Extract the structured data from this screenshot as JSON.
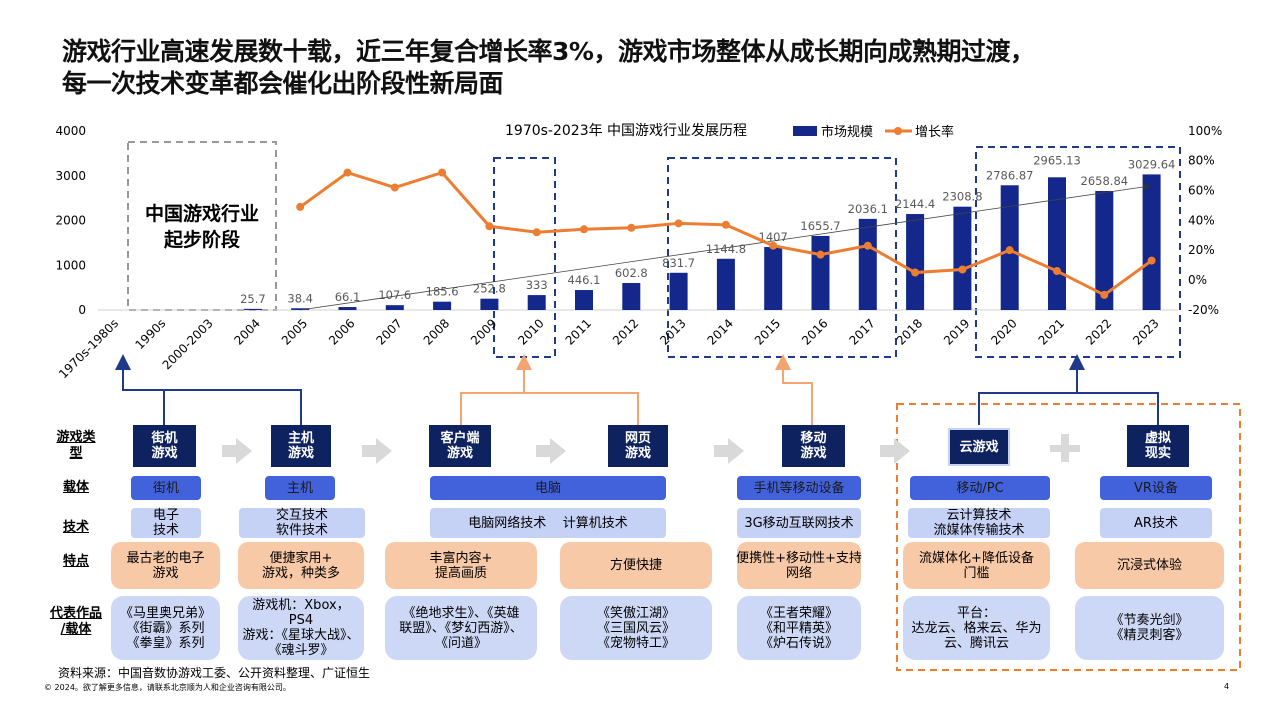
{
  "title": {
    "line1": "游戏行业高速发展数十载，近三年复合增长率3%，游戏市场整体从成长期向成熟期过渡，",
    "line2": "每一次技术变革都会催化出阶段性新局面"
  },
  "chart_data": {
    "type": "bar+line",
    "title": "1970s-2023年 中国游戏行业发展历程",
    "categories": [
      "1970s-1980s",
      "1990s",
      "2000-2003",
      "2004",
      "2005",
      "2006",
      "2007",
      "2008",
      "2009",
      "2010",
      "2011",
      "2012",
      "2013",
      "2014",
      "2015",
      "2016",
      "2017",
      "2018",
      "2019",
      "2020",
      "2021",
      "2022",
      "2023"
    ],
    "series": [
      {
        "name": "市场规模",
        "type": "bar",
        "axis": "left",
        "color": "#13288a",
        "values": [
          null,
          null,
          null,
          25.7,
          38.4,
          66.1,
          107.6,
          185.6,
          252.8,
          333,
          446.1,
          602.8,
          831.7,
          1144.8,
          1407,
          1655.7,
          2036.1,
          2144.4,
          2308.8,
          2786.87,
          2965.13,
          2658.84,
          3029.64
        ]
      },
      {
        "name": "增长率",
        "type": "line",
        "axis": "right",
        "color": "#ed7d31",
        "values": [
          null,
          null,
          null,
          null,
          49,
          72,
          62,
          72,
          36,
          32,
          34,
          35,
          38,
          37,
          23,
          17,
          23,
          5,
          7,
          20,
          6,
          -10,
          13
        ]
      }
    ],
    "y_left": {
      "range": [
        0,
        4000
      ],
      "ticks": [
        "0",
        "1000",
        "2000",
        "3000",
        "4000"
      ]
    },
    "y_right": {
      "range": [
        -20,
        100
      ],
      "unit": "%",
      "ticks": [
        "-20%",
        "0%",
        "20%",
        "40%",
        "60%",
        "80%",
        "100%"
      ]
    },
    "legend_placement": "top",
    "grid": false,
    "annotation": "中国游戏行业\n起步阶段"
  },
  "diagram": {
    "row_labels": [
      "游戏类\n型",
      "载体",
      "技术",
      "特点",
      "代表作品\n/载体"
    ],
    "types": [
      "街机\n游戏",
      "主机\n游戏",
      "客户端\n游戏",
      "网页\n游戏",
      "移动\n游戏",
      "云游戏",
      "虚拟\n现实"
    ],
    "carriers": [
      "街机",
      "主机",
      "电脑",
      "手机等移动设备",
      "移动/PC",
      "VR设备"
    ],
    "techs": [
      "电子\n技术",
      "交互技术\n软件技术",
      "电脑网络技术    计算机技术",
      "3G移动互联网技术",
      "云计算技术\n流媒体传输技术",
      "AR技术"
    ],
    "features": [
      "最古老的电子\n游戏",
      "便捷家用+\n游戏，种类多",
      "丰富内容+\n提高画质",
      "方便快捷",
      "便携性+移动性+支持\n网络",
      "流媒体化+降低设备\n门槛",
      "沉浸式体验"
    ],
    "works": [
      "《马里奥兄弟》\n《街霸》系列\n《拳皇》系列",
      "游戏机：Xbox，\nPS4\n游戏：《星球大战》、\n《魂斗罗》",
      "《绝地求生》、《英雄\n联盟》、《梦幻西游》、\n《问道》",
      "《笑傲江湖》\n《三国风云》\n《宠物特工》",
      "《王者荣耀》\n《和平精英》\n《炉石传说》",
      "平台：\n达龙云、格来云、华为\n云、腾讯云",
      "《节奏光剑》\n《精灵刺客》"
    ]
  },
  "footer": {
    "source": "资料来源：中国音数协游戏工委、公开资料整理、广证恒生",
    "copyright": "© 2024。欲了解更多信息，请联系北京顺为人和企业咨询有限公司。",
    "page": "4"
  }
}
